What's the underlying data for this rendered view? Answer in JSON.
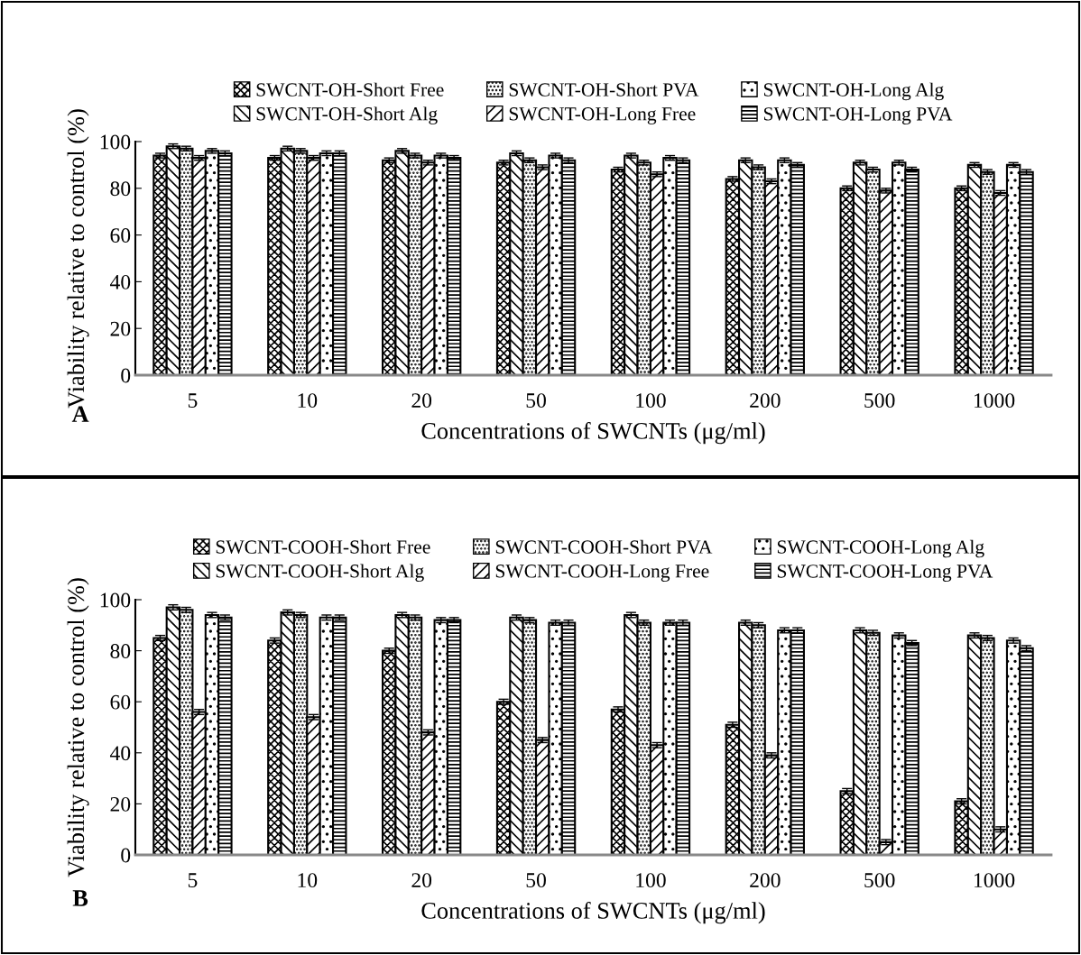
{
  "chart_data": [
    {
      "type": "bar",
      "xlabel": "Concentrations of SWCNTs (μg/ml)",
      "ylabel": "Viability relative to control (%)",
      "annotations": [
        "A"
      ],
      "categories": [
        "5",
        "10",
        "20",
        "50",
        "100",
        "200",
        "500",
        "1000"
      ],
      "ylim": [
        0,
        100
      ],
      "yticks": [
        0,
        20,
        40,
        60,
        80,
        100
      ],
      "grid": false,
      "legend": "top",
      "series": [
        {
          "name": "SWCNT-OH-Short Free",
          "color": "#000000",
          "values": [
            94,
            93,
            92,
            91,
            88,
            84,
            80,
            80
          ],
          "errors": [
            1,
            1,
            1,
            1,
            1,
            1,
            1,
            1
          ]
        },
        {
          "name": "SWCNT-OH-Short Alg",
          "color": "#000000",
          "values": [
            98,
            97,
            96,
            95,
            94,
            92,
            91,
            90
          ],
          "errors": [
            1,
            1,
            1,
            1,
            1,
            1,
            1,
            1
          ]
        },
        {
          "name": "SWCNT-OH-Short PVA",
          "color": "#000000",
          "values": [
            97,
            96,
            94,
            92,
            91,
            89,
            88,
            87
          ],
          "errors": [
            1,
            1,
            1,
            1,
            1,
            1,
            1,
            1
          ]
        },
        {
          "name": "SWCNT-OH-Long Free",
          "color": "#000000",
          "values": [
            93,
            93,
            91,
            89,
            86,
            83,
            79,
            78
          ],
          "errors": [
            1,
            1,
            1,
            1,
            1,
            1,
            1,
            1
          ]
        },
        {
          "name": "SWCNT-OH-Long Alg",
          "color": "#000000",
          "values": [
            96,
            95,
            94,
            94,
            93,
            92,
            91,
            90
          ],
          "errors": [
            1,
            1,
            1,
            1,
            1,
            1,
            1,
            1
          ]
        },
        {
          "name": "SWCNT-OH-Long PVA",
          "color": "#000000",
          "values": [
            95,
            95,
            93,
            92,
            92,
            90,
            88,
            87
          ],
          "errors": [
            1,
            1,
            1,
            1,
            1,
            1,
            1,
            1
          ]
        }
      ]
    },
    {
      "type": "bar",
      "xlabel": "Concentrations of SWCNTs (μg/ml)",
      "ylabel": "Viability relative to control (%)",
      "annotations": [
        "B"
      ],
      "categories": [
        "5",
        "10",
        "20",
        "50",
        "100",
        "200",
        "500",
        "1000"
      ],
      "ylim": [
        0,
        100
      ],
      "yticks": [
        0,
        20,
        40,
        60,
        80,
        100
      ],
      "grid": false,
      "legend": "top",
      "series": [
        {
          "name": "SWCNT-COOH-Short Free",
          "color": "#000000",
          "values": [
            85,
            84,
            80,
            60,
            57,
            51,
            25,
            21
          ],
          "errors": [
            1,
            1,
            1,
            1,
            1,
            1,
            1,
            1
          ]
        },
        {
          "name": "SWCNT-COOH-Short Alg",
          "color": "#000000",
          "values": [
            97,
            95,
            94,
            93,
            94,
            91,
            88,
            86
          ],
          "errors": [
            1,
            1,
            1,
            1,
            1,
            1,
            1,
            1
          ]
        },
        {
          "name": "SWCNT-COOH-Short PVA",
          "color": "#000000",
          "values": [
            96,
            94,
            93,
            92,
            91,
            90,
            87,
            85
          ],
          "errors": [
            1,
            1,
            1,
            1,
            1,
            1,
            1,
            1
          ]
        },
        {
          "name": "SWCNT-COOH-Long Free",
          "color": "#000000",
          "values": [
            56,
            54,
            48,
            45,
            43,
            39,
            5,
            10
          ],
          "errors": [
            1,
            1,
            1,
            1,
            1,
            1,
            1,
            1
          ]
        },
        {
          "name": "SWCNT-COOH-Long Alg",
          "color": "#000000",
          "values": [
            94,
            93,
            92,
            91,
            91,
            88,
            86,
            84
          ],
          "errors": [
            1,
            1,
            1,
            1,
            1,
            1,
            1,
            1
          ]
        },
        {
          "name": "SWCNT-COOH-Long PVA",
          "color": "#000000",
          "values": [
            93,
            93,
            92,
            91,
            91,
            88,
            83,
            81
          ],
          "errors": [
            1,
            1,
            1,
            1,
            1,
            1,
            1,
            1
          ]
        }
      ]
    }
  ]
}
